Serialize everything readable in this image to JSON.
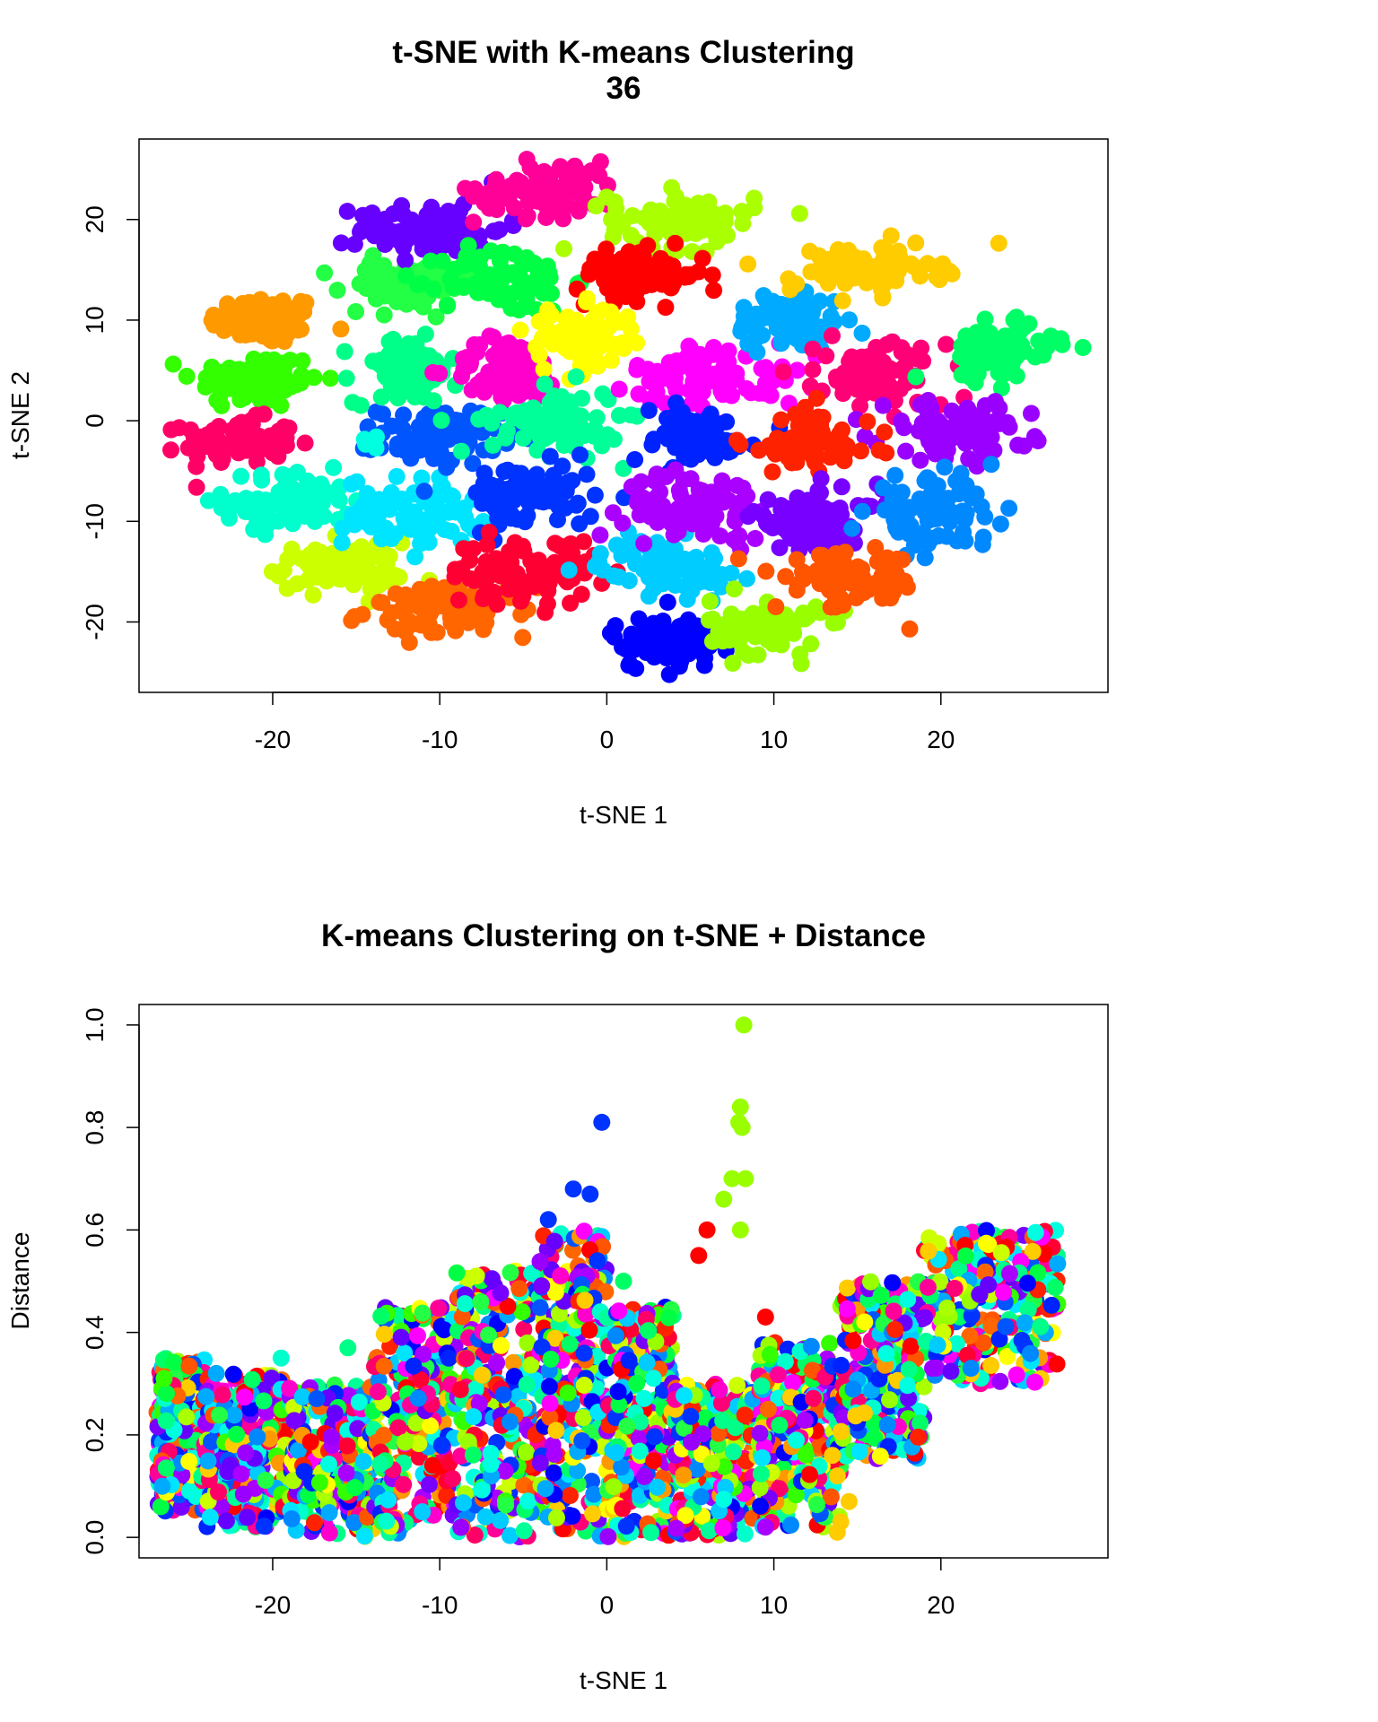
{
  "chart_data": [
    {
      "type": "scatter",
      "title": "t-SNE with K-means Clustering",
      "subtitle": "36",
      "xlabel": "t-SNE 1",
      "ylabel": "t-SNE 2",
      "xlim": [
        -28,
        30
      ],
      "ylim": [
        -27,
        28
      ],
      "x_ticks": [
        "-20",
        "-10",
        "0",
        "10",
        "20"
      ],
      "y_ticks": [
        "-20",
        "-10",
        "0",
        "10",
        "20"
      ],
      "grid": false,
      "legend": "none",
      "clusters": [
        {
          "color": "#FF9900",
          "center": [
            -20.5,
            10.0
          ],
          "spread": [
            3.0,
            2.2
          ]
        },
        {
          "color": "#33FF00",
          "center": [
            -21.0,
            4.0
          ],
          "spread": [
            3.5,
            2.6
          ]
        },
        {
          "color": "#FF0066",
          "center": [
            -22.0,
            -2.0
          ],
          "spread": [
            3.0,
            2.0
          ]
        },
        {
          "color": "#00FFCC",
          "center": [
            -19.0,
            -8.0
          ],
          "spread": [
            3.5,
            2.6
          ]
        },
        {
          "color": "#CCFF00",
          "center": [
            -16.0,
            -14.5
          ],
          "spread": [
            3.5,
            2.2
          ]
        },
        {
          "color": "#FF6600",
          "center": [
            -9.5,
            -19.0
          ],
          "spread": [
            4.5,
            2.2
          ]
        },
        {
          "color": "#00E5FF",
          "center": [
            -11.5,
            -9.0
          ],
          "spread": [
            3.8,
            3.0
          ]
        },
        {
          "color": "#0055FF",
          "center": [
            -10.0,
            -1.5
          ],
          "spread": [
            3.3,
            2.6
          ]
        },
        {
          "color": "#00FF88",
          "center": [
            -12.0,
            5.0
          ],
          "spread": [
            2.8,
            3.0
          ]
        },
        {
          "color": "#22FF44",
          "center": [
            -12.0,
            13.5
          ],
          "spread": [
            3.5,
            2.2
          ]
        },
        {
          "color": "#6600FF",
          "center": [
            -10.5,
            19.0
          ],
          "spread": [
            4.0,
            2.5
          ]
        },
        {
          "color": "#00FF44",
          "center": [
            -6.0,
            14.0
          ],
          "spread": [
            3.5,
            3.0
          ]
        },
        {
          "color": "#FF00CC",
          "center": [
            -6.0,
            5.0
          ],
          "spread": [
            3.0,
            3.0
          ]
        },
        {
          "color": "#FF0099",
          "center": [
            -3.5,
            23.0
          ],
          "spread": [
            4.0,
            2.5
          ]
        },
        {
          "color": "#AAFF00",
          "center": [
            4.5,
            20.0
          ],
          "spread": [
            4.0,
            2.5
          ]
        },
        {
          "color": "#FF0000",
          "center": [
            2.0,
            14.5
          ],
          "spread": [
            3.5,
            2.2
          ]
        },
        {
          "color": "#FFFF00",
          "center": [
            -1.5,
            8.0
          ],
          "spread": [
            3.0,
            3.0
          ]
        },
        {
          "color": "#00FF99",
          "center": [
            -3.0,
            0.0
          ],
          "spread": [
            3.5,
            3.0
          ]
        },
        {
          "color": "#0033FF",
          "center": [
            -4.5,
            -7.5
          ],
          "spread": [
            3.5,
            3.0
          ]
        },
        {
          "color": "#FF0033",
          "center": [
            -5.0,
            -15.0
          ],
          "spread": [
            4.0,
            3.0
          ]
        },
        {
          "color": "#00CCFF",
          "center": [
            3.5,
            -14.5
          ],
          "spread": [
            3.5,
            2.5
          ]
        },
        {
          "color": "#0000FF",
          "center": [
            3.5,
            -22.0
          ],
          "spread": [
            3.0,
            2.5
          ]
        },
        {
          "color": "#99FF00",
          "center": [
            9.5,
            -20.5
          ],
          "spread": [
            3.0,
            2.5
          ]
        },
        {
          "color": "#FF00FF",
          "center": [
            6.5,
            4.5
          ],
          "spread": [
            4.5,
            3.0
          ]
        },
        {
          "color": "#0022FF",
          "center": [
            5.0,
            -1.5
          ],
          "spread": [
            3.5,
            2.5
          ]
        },
        {
          "color": "#AA00FF",
          "center": [
            5.5,
            -8.5
          ],
          "spread": [
            4.0,
            3.0
          ]
        },
        {
          "color": "#00AAFF",
          "center": [
            11.0,
            10.0
          ],
          "spread": [
            3.0,
            2.8
          ]
        },
        {
          "color": "#FFCC00",
          "center": [
            15.5,
            15.0
          ],
          "spread": [
            4.0,
            2.2
          ]
        },
        {
          "color": "#FF0077",
          "center": [
            16.5,
            4.5
          ],
          "spread": [
            3.5,
            3.0
          ]
        },
        {
          "color": "#00FF66",
          "center": [
            23.5,
            7.0
          ],
          "spread": [
            3.0,
            2.8
          ]
        },
        {
          "color": "#9900FF",
          "center": [
            21.0,
            -1.0
          ],
          "spread": [
            4.0,
            2.6
          ]
        },
        {
          "color": "#FF2200",
          "center": [
            12.0,
            -2.0
          ],
          "spread": [
            3.5,
            3.0
          ]
        },
        {
          "color": "#7700FF",
          "center": [
            12.5,
            -10.0
          ],
          "spread": [
            3.5,
            3.0
          ]
        },
        {
          "color": "#0088FF",
          "center": [
            19.5,
            -9.0
          ],
          "spread": [
            3.5,
            3.0
          ]
        },
        {
          "color": "#FF5500",
          "center": [
            14.5,
            -16.0
          ],
          "spread": [
            4.0,
            2.5
          ]
        },
        {
          "color": "#00FFE0",
          "center": [
            -14.0,
            -2.0
          ],
          "spread": [
            1.0,
            1.0
          ]
        }
      ]
    },
    {
      "type": "scatter",
      "title": "K-means Clustering on t-SNE + Distance",
      "xlabel": "t-SNE 1",
      "ylabel": "Distance",
      "xlim": [
        -28,
        30
      ],
      "ylim": [
        -0.04,
        1.04
      ],
      "x_ticks": [
        "-20",
        "-10",
        "0",
        "10",
        "20"
      ],
      "y_ticks": [
        "0.0",
        "0.2",
        "0.4",
        "0.6",
        "0.8",
        "1.0"
      ],
      "grid": false,
      "legend": "none",
      "ribbons": [
        {
          "x_range": [
            -27,
            -24
          ],
          "y_range": [
            0.05,
            0.35
          ]
        },
        {
          "x_range": [
            -24,
            -19
          ],
          "y_range": [
            0.02,
            0.32
          ]
        },
        {
          "x_range": [
            -19,
            -14
          ],
          "y_range": [
            0.0,
            0.3
          ]
        },
        {
          "x_range": [
            -14,
            -9
          ],
          "y_range": [
            0.0,
            0.45
          ]
        },
        {
          "x_range": [
            -9,
            -4
          ],
          "y_range": [
            0.0,
            0.52
          ]
        },
        {
          "x_range": [
            -4,
            0
          ],
          "y_range": [
            0.0,
            0.6
          ]
        },
        {
          "x_range": [
            0,
            4
          ],
          "y_range": [
            0.0,
            0.45
          ]
        },
        {
          "x_range": [
            4,
            9
          ],
          "y_range": [
            0.0,
            0.3
          ]
        },
        {
          "x_range": [
            9,
            14
          ],
          "y_range": [
            0.02,
            0.38
          ]
        },
        {
          "x_range": [
            14,
            19
          ],
          "y_range": [
            0.15,
            0.5
          ]
        },
        {
          "x_range": [
            19,
            27
          ],
          "y_range": [
            0.3,
            0.6
          ]
        }
      ],
      "outliers": [
        {
          "x": 8.2,
          "y": 1.0,
          "color": "#99FF00"
        },
        {
          "x": 8.0,
          "y": 0.84,
          "color": "#99FF00"
        },
        {
          "x": 7.9,
          "y": 0.81,
          "color": "#99FF00"
        },
        {
          "x": 8.1,
          "y": 0.8,
          "color": "#99FF00"
        },
        {
          "x": -0.3,
          "y": 0.81,
          "color": "#0033FF"
        },
        {
          "x": -2.0,
          "y": 0.68,
          "color": "#0033FF"
        },
        {
          "x": -1.0,
          "y": 0.67,
          "color": "#0033FF"
        },
        {
          "x": -3.5,
          "y": 0.62,
          "color": "#0033FF"
        },
        {
          "x": 7.5,
          "y": 0.7,
          "color": "#99FF00"
        },
        {
          "x": 8.3,
          "y": 0.7,
          "color": "#99FF00"
        },
        {
          "x": 7.0,
          "y": 0.66,
          "color": "#99FF00"
        },
        {
          "x": 8.0,
          "y": 0.6,
          "color": "#99FF00"
        },
        {
          "x": 6.0,
          "y": 0.6,
          "color": "#FF0000"
        },
        {
          "x": 5.5,
          "y": 0.55,
          "color": "#FF0000"
        },
        {
          "x": 1.0,
          "y": 0.5,
          "color": "#00FF66"
        },
        {
          "x": 13.8,
          "y": 0.01,
          "color": "#FFCC00"
        },
        {
          "x": 14.0,
          "y": 0.03,
          "color": "#FFCC00"
        },
        {
          "x": 14.5,
          "y": 0.07,
          "color": "#FFCC00"
        },
        {
          "x": 13.8,
          "y": 0.12,
          "color": "#FFCC00"
        },
        {
          "x": 13.5,
          "y": 0.16,
          "color": "#FFCC00"
        },
        {
          "x": 21.8,
          "y": 0.33,
          "color": "#0088FF"
        },
        {
          "x": 16.8,
          "y": 0.22,
          "color": "#0088FF"
        },
        {
          "x": 19.5,
          "y": 0.33,
          "color": "#9900FF"
        },
        {
          "x": 9.5,
          "y": 0.43,
          "color": "#FF0000"
        },
        {
          "x": 9.5,
          "y": 0.02,
          "color": "#AA00FF"
        },
        {
          "x": -26.5,
          "y": 0.31,
          "color": "#33FF00"
        },
        {
          "x": -19.5,
          "y": 0.35,
          "color": "#00FFCC"
        },
        {
          "x": -15.5,
          "y": 0.37,
          "color": "#00FF88"
        }
      ]
    }
  ]
}
